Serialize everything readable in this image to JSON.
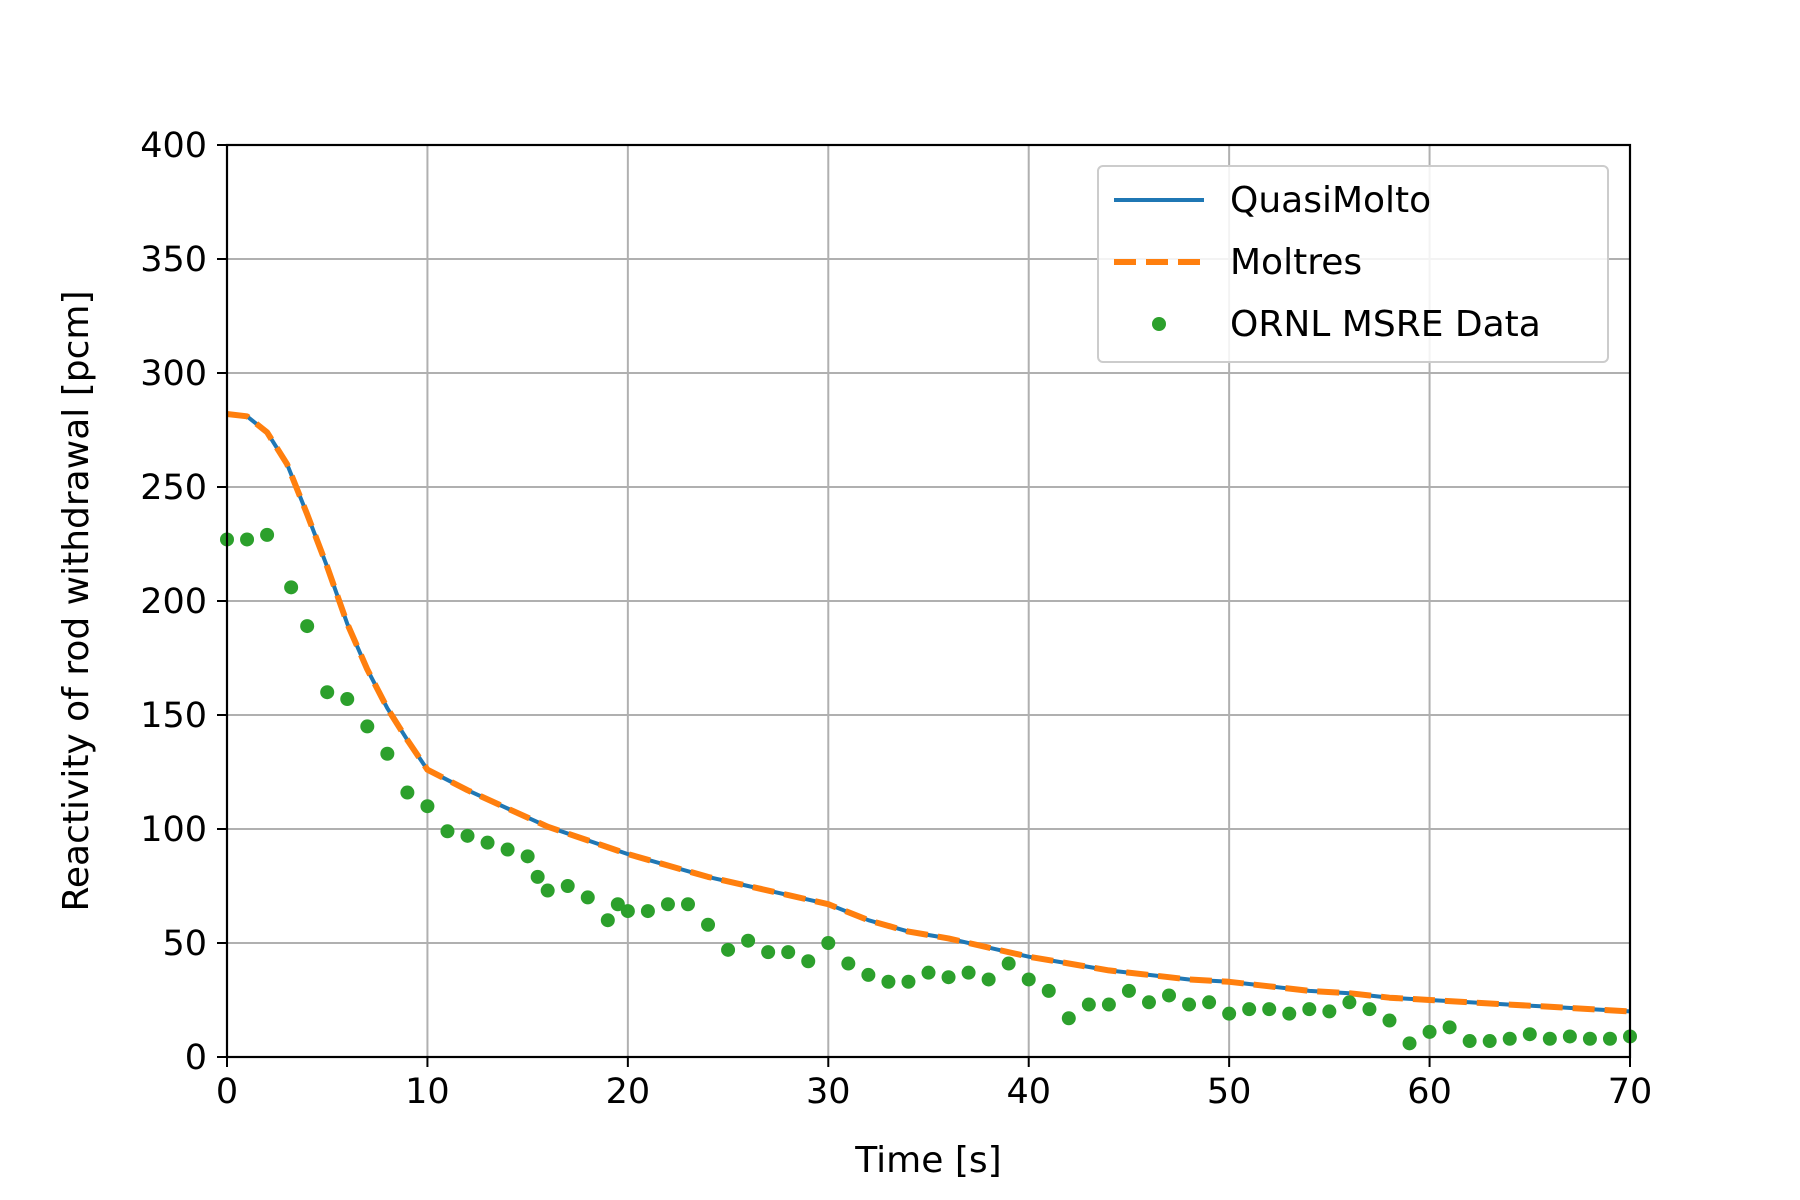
{
  "chart_data": {
    "type": "line",
    "xlabel": "Time [s]",
    "ylabel": "Reactivity of rod withdrawal [pcm]",
    "xlim": [
      0,
      70
    ],
    "ylim": [
      0,
      400
    ],
    "xticks": [
      0,
      10,
      20,
      30,
      40,
      50,
      60,
      70
    ],
    "yticks": [
      0,
      50,
      100,
      150,
      200,
      250,
      300,
      350,
      400
    ],
    "grid": true,
    "legend_position": "top-right",
    "series": [
      {
        "name": "QuasiMolto",
        "kind": "line",
        "style": "solid",
        "color": "#1f77b4",
        "x": [
          0,
          1,
          2,
          3,
          4,
          5,
          6,
          7,
          8,
          9,
          10,
          12,
          14,
          16,
          18,
          20,
          22,
          24,
          26,
          28,
          30,
          32,
          34,
          36,
          38,
          40,
          42,
          44,
          46,
          48,
          50,
          52,
          54,
          56,
          58,
          60,
          62,
          64,
          66,
          68,
          70
        ],
        "y": [
          282,
          281,
          274,
          260,
          238,
          215,
          190,
          170,
          153,
          139,
          126,
          117,
          109,
          101,
          95,
          89,
          84,
          79,
          75,
          71,
          67,
          60,
          55,
          52,
          48,
          44,
          41,
          38,
          36,
          34,
          33,
          31,
          29,
          28,
          26,
          25,
          24,
          23,
          22,
          21,
          20
        ]
      },
      {
        "name": "Moltres",
        "kind": "line",
        "style": "dashed",
        "color": "#ff7f0e",
        "x": [
          0,
          1,
          2,
          3,
          4,
          5,
          6,
          7,
          8,
          9,
          10,
          12,
          14,
          16,
          18,
          20,
          22,
          24,
          26,
          28,
          30,
          32,
          34,
          36,
          38,
          40,
          42,
          44,
          46,
          48,
          50,
          52,
          54,
          56,
          58,
          60,
          62,
          64,
          66,
          68,
          70
        ],
        "y": [
          282,
          281,
          274,
          260,
          238,
          215,
          190,
          170,
          153,
          139,
          126,
          117,
          109,
          101,
          95,
          89,
          84,
          79,
          75,
          71,
          67,
          60,
          55,
          52,
          48,
          44,
          41,
          38,
          36,
          34,
          33,
          31,
          29,
          28,
          26,
          25,
          24,
          23,
          22,
          21,
          20
        ]
      },
      {
        "name": "ORNL MSRE Data",
        "kind": "scatter",
        "color": "#2ca02c",
        "x": [
          0,
          1,
          2,
          3.2,
          4,
          5,
          6,
          7,
          8,
          9,
          10,
          11,
          12,
          13,
          14,
          15,
          15.5,
          16,
          17,
          18,
          19,
          19.5,
          20,
          21,
          22,
          23,
          24,
          25,
          26,
          27,
          28,
          29,
          30,
          31,
          32,
          33,
          34,
          35,
          36,
          37,
          38,
          39,
          40,
          41,
          42,
          43,
          44,
          45,
          46,
          47,
          48,
          49,
          50,
          51,
          52,
          53,
          54,
          55,
          56,
          57,
          58,
          59,
          60,
          61,
          62,
          63,
          64,
          65,
          66,
          67,
          68,
          69,
          70
        ],
        "y": [
          227,
          227,
          229,
          206,
          189,
          160,
          157,
          145,
          133,
          116,
          110,
          99,
          97,
          94,
          91,
          88,
          79,
          73,
          75,
          70,
          60,
          67,
          64,
          64,
          67,
          67,
          58,
          47,
          51,
          46,
          46,
          42,
          50,
          41,
          36,
          33,
          33,
          37,
          35,
          37,
          34,
          41,
          34,
          29,
          17,
          23,
          23,
          29,
          24,
          27,
          23,
          24,
          19,
          21,
          21,
          19,
          21,
          20,
          24,
          21,
          16,
          6,
          11,
          13,
          7,
          7,
          8,
          10,
          8,
          9,
          8,
          8,
          9
        ]
      }
    ]
  }
}
